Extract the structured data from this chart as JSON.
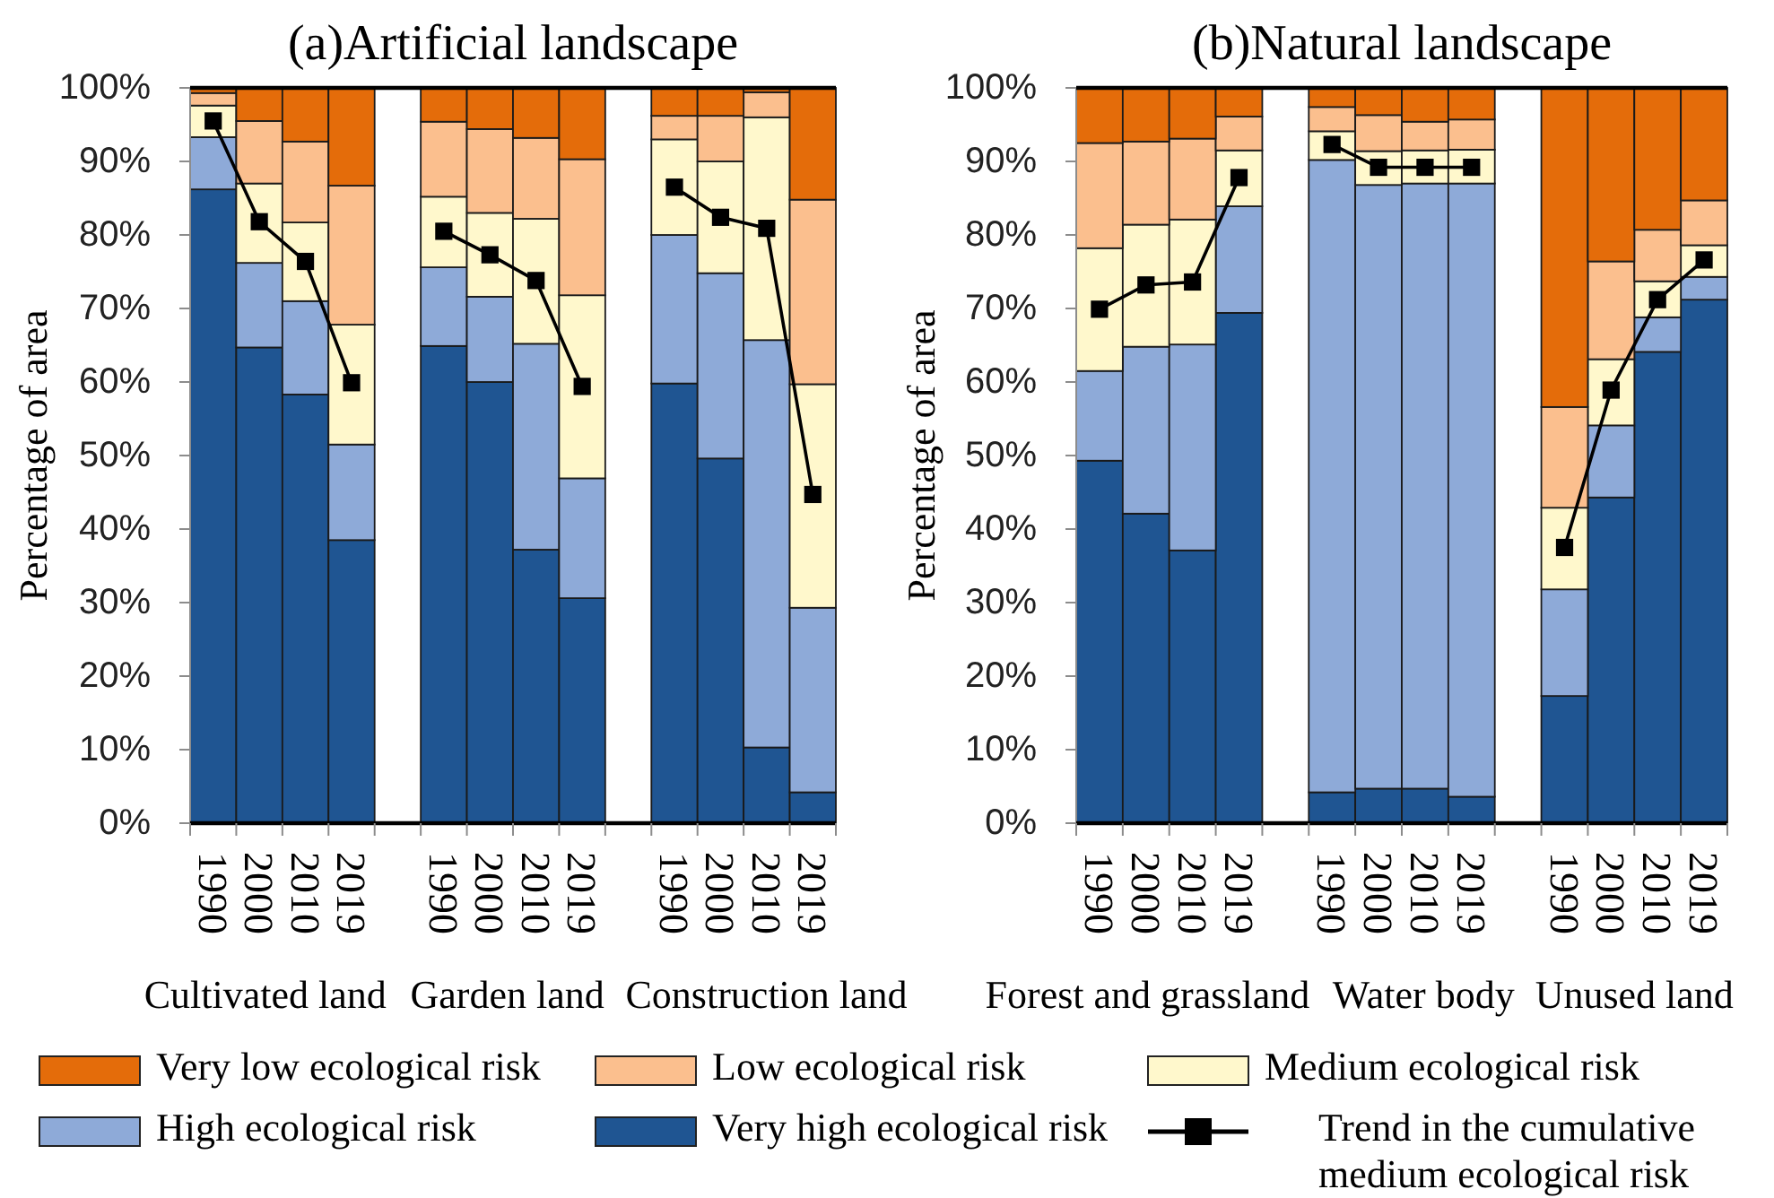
{
  "chart_data": [
    {
      "type": "bar",
      "title": "(a)Artificial landscape",
      "ylabel": "Percentage of area",
      "stacked": true,
      "legend": "bottom",
      "marker": "square",
      "categories": [
        "1990",
        "2000",
        "2010",
        "2019",
        null,
        "1990",
        "2000",
        "2010",
        "2019",
        null,
        "1990",
        "2000",
        "2010",
        "2019"
      ],
      "ylim": [
        0,
        100
      ],
      "yticks": [
        {
          "value": 0,
          "label": "0%"
        },
        {
          "value": 10,
          "label": "10%"
        },
        {
          "value": 20,
          "label": "20%"
        },
        {
          "value": 30,
          "label": "30%"
        },
        {
          "value": 40,
          "label": "40%"
        },
        {
          "value": 50,
          "label": "50%"
        },
        {
          "value": 60,
          "label": "60%"
        },
        {
          "value": 70,
          "label": "70%"
        },
        {
          "value": 80,
          "label": "80%"
        },
        {
          "value": 90,
          "label": "90%"
        },
        {
          "value": 100,
          "label": "100%"
        }
      ],
      "annotations": [
        "Cultivated land",
        "Garden land",
        "Construction land"
      ],
      "series": [
        {
          "name": "Very high ecological risk",
          "color": "#1f5592",
          "values": [
            86.2,
            64.7,
            58.3,
            38.5,
            null,
            64.9,
            60.0,
            37.2,
            30.6,
            null,
            59.8,
            49.6,
            10.3,
            4.2
          ]
        },
        {
          "name": "High ecological risk",
          "color": "#8eaad8",
          "values": [
            7.1,
            11.5,
            12.7,
            13.0,
            null,
            10.7,
            11.6,
            28.0,
            16.3,
            null,
            20.2,
            25.2,
            55.4,
            25.1
          ]
        },
        {
          "name": "Medium ecological risk",
          "color": "#fff8cc",
          "values": [
            4.3,
            10.8,
            10.7,
            16.3,
            null,
            9.6,
            11.4,
            17.0,
            24.9,
            null,
            13.0,
            15.2,
            30.3,
            30.4
          ]
        },
        {
          "name": "Low ecological risk",
          "color": "#fbbf8e",
          "values": [
            1.7,
            8.5,
            11.0,
            18.9,
            null,
            10.2,
            11.4,
            11.0,
            18.5,
            null,
            3.2,
            6.2,
            3.4,
            25.1
          ]
        },
        {
          "name": "Very low ecological risk",
          "color": "#e46c0a",
          "values": [
            0.7,
            4.5,
            7.3,
            13.3,
            null,
            4.6,
            5.6,
            6.8,
            9.7,
            null,
            3.8,
            3.8,
            0.6,
            15.2
          ]
        },
        {
          "name": "Trend in the cumulative medium ecological risk",
          "type": "line",
          "color": "#000000",
          "values": [
            95.5,
            81.8,
            76.4,
            59.9,
            null,
            80.5,
            77.3,
            73.8,
            59.4,
            null,
            86.5,
            82.4,
            80.9,
            44.7
          ]
        }
      ]
    },
    {
      "type": "bar",
      "title": "(b)Natural landscape",
      "ylabel": "Percentage of area",
      "stacked": true,
      "marker": "square",
      "categories": [
        "1990",
        "2000",
        "2010",
        "2019",
        null,
        "1990",
        "2000",
        "2010",
        "2019",
        null,
        "1990",
        "2000",
        "2010",
        "2019"
      ],
      "ylim": [
        0,
        100
      ],
      "yticks": [
        {
          "value": 0,
          "label": "0%"
        },
        {
          "value": 10,
          "label": "10%"
        },
        {
          "value": 20,
          "label": "20%"
        },
        {
          "value": 30,
          "label": "30%"
        },
        {
          "value": 40,
          "label": "40%"
        },
        {
          "value": 50,
          "label": "50%"
        },
        {
          "value": 60,
          "label": "60%"
        },
        {
          "value": 70,
          "label": "70%"
        },
        {
          "value": 80,
          "label": "80%"
        },
        {
          "value": 90,
          "label": "90%"
        },
        {
          "value": 100,
          "label": "100%"
        }
      ],
      "annotations": [
        "Forest and grassland",
        "Water body",
        "Unused land"
      ],
      "series": [
        {
          "color": "#1f5592",
          "values": [
            49.3,
            42.1,
            37.1,
            69.4,
            null,
            4.2,
            4.7,
            4.7,
            3.6,
            null,
            17.3,
            44.3,
            64.1,
            71.2
          ]
        },
        {
          "color": "#8eaad8",
          "values": [
            12.2,
            22.7,
            28.0,
            14.5,
            null,
            86.0,
            82.1,
            82.3,
            83.4,
            null,
            14.5,
            9.8,
            4.7,
            3.1
          ]
        },
        {
          "color": "#fff8cc",
          "values": [
            16.7,
            16.6,
            17.0,
            7.6,
            null,
            3.9,
            4.6,
            4.5,
            4.6,
            null,
            11.1,
            9.0,
            4.9,
            4.3
          ]
        },
        {
          "color": "#fbbf8e",
          "values": [
            14.3,
            11.3,
            11.0,
            4.6,
            null,
            3.3,
            4.9,
            3.9,
            4.1,
            null,
            13.7,
            13.3,
            7.0,
            6.1
          ]
        },
        {
          "color": "#e46c0a",
          "values": [
            7.5,
            7.3,
            6.9,
            3.9,
            null,
            2.6,
            3.7,
            4.6,
            4.3,
            null,
            43.4,
            23.6,
            19.3,
            15.3
          ]
        },
        {
          "type": "line",
          "color": "#000000",
          "values": [
            69.9,
            73.2,
            73.6,
            87.8,
            null,
            92.3,
            89.2,
            89.2,
            89.2,
            null,
            37.5,
            58.9,
            71.2,
            76.6
          ]
        }
      ]
    }
  ]
}
